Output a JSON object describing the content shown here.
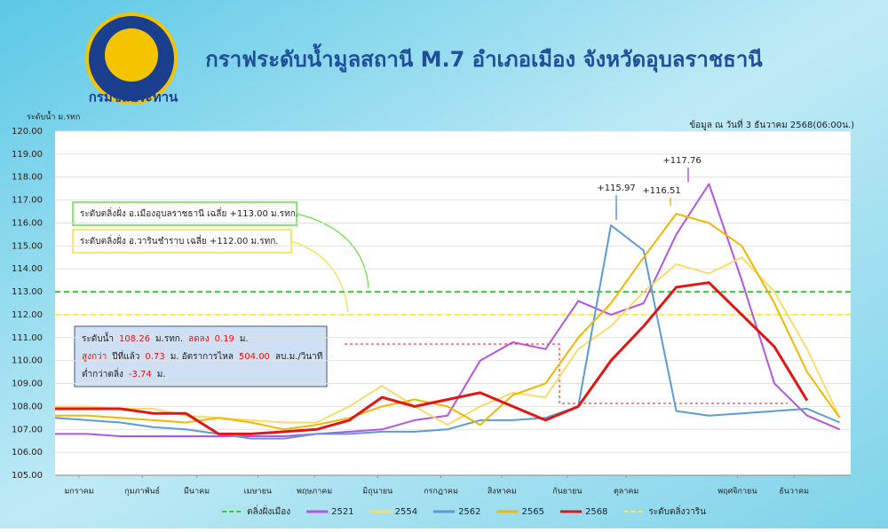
{
  "agency": "กรมชลประทาน",
  "chart_data": {
    "type": "line",
    "title": "กราฟระดับน้ำมูลสถานี M.7 อำเภอเมือง จังหวัดอุบลราชธานี",
    "y_label": "ระดับน้ำ ม.รทก",
    "data_note": "ข้อมูล ณ วันที่  3 ธันวาคม 2568(06:00น.)",
    "ylim": [
      105,
      120
    ],
    "yticks": [
      {
        "value": 105,
        "label": "105.00"
      },
      {
        "value": 106,
        "label": "106.00"
      },
      {
        "value": 107,
        "label": "107.00"
      },
      {
        "value": 108,
        "label": "108.00"
      },
      {
        "value": 109,
        "label": "109.00"
      },
      {
        "value": 110,
        "label": "110.00"
      },
      {
        "value": 111,
        "label": "111.00"
      },
      {
        "value": 112,
        "label": "112.00"
      },
      {
        "value": 113,
        "label": "113.00"
      },
      {
        "value": 114,
        "label": "114.00"
      },
      {
        "value": 115,
        "label": "115.00"
      },
      {
        "value": 116,
        "label": "116.00"
      },
      {
        "value": 117,
        "label": "117.00"
      },
      {
        "value": 118,
        "label": "118.00"
      },
      {
        "value": 119,
        "label": "119.00"
      },
      {
        "value": 120,
        "label": "120.00"
      }
    ],
    "xlim": [
      0,
      365
    ],
    "xticks": [
      {
        "value": 11,
        "label": "มกราคม"
      },
      {
        "value": 40,
        "label": "กุมภาพันธ์"
      },
      {
        "value": 65,
        "label": "มีนาคม"
      },
      {
        "value": 93,
        "label": "เมษายน"
      },
      {
        "value": 119,
        "label": "พฤษภาคม"
      },
      {
        "value": 148,
        "label": "มิถุนายน"
      },
      {
        "value": 177,
        "label": "กรกฎาคม"
      },
      {
        "value": 205,
        "label": "สิงหาคม"
      },
      {
        "value": 235,
        "label": "กันยายน"
      },
      {
        "value": 262,
        "label": "ตุลาคม"
      },
      {
        "value": 313,
        "label": "พฤศจิกายน"
      },
      {
        "value": 339,
        "label": "ธันวาคม"
      }
    ],
    "grid": true,
    "x": [
      0,
      15,
      30,
      45,
      60,
      75,
      90,
      105,
      120,
      135,
      150,
      165,
      180,
      195,
      210,
      225,
      240,
      255,
      270,
      285,
      300,
      315,
      330,
      345,
      360
    ],
    "reference_lines": [
      {
        "name": "ตลิ่งฝั่งเมือง",
        "value": 113,
        "color": "#33cc33"
      },
      {
        "name": "ระดับตลิ่งวาริน",
        "value": 112,
        "color": "#ffee33"
      }
    ],
    "series": [
      {
        "name": "2521",
        "color": "#b455e0",
        "values": [
          106.8,
          106.8,
          106.7,
          106.7,
          106.7,
          106.7,
          106.7,
          106.7,
          106.8,
          106.9,
          107.0,
          107.4,
          107.6,
          110.0,
          110.8,
          110.5,
          112.6,
          112.0,
          112.5,
          115.5,
          117.7,
          113.5,
          109.0,
          107.6,
          107.0
        ]
      },
      {
        "name": "2554",
        "color": "#f6dc6a",
        "values": [
          108.0,
          108.0,
          107.9,
          107.9,
          107.6,
          107.5,
          107.4,
          107.3,
          107.3,
          108.0,
          108.9,
          108.0,
          107.2,
          108.0,
          108.6,
          108.4,
          110.5,
          111.5,
          113.0,
          114.2,
          113.8,
          114.5,
          113.0,
          110.5,
          107.5
        ]
      },
      {
        "name": "2562",
        "color": "#5b9bd5",
        "values": [
          107.5,
          107.4,
          107.3,
          107.1,
          107.0,
          106.8,
          106.6,
          106.6,
          106.8,
          106.8,
          106.9,
          106.9,
          107.0,
          107.4,
          107.4,
          107.5,
          108.0,
          115.9,
          114.8,
          107.8,
          107.6,
          107.7,
          107.8,
          107.9,
          107.3
        ]
      },
      {
        "name": "2565",
        "color": "#f2b705",
        "values": [
          107.6,
          107.6,
          107.5,
          107.4,
          107.3,
          107.5,
          107.3,
          107.0,
          107.2,
          107.5,
          108.0,
          108.3,
          108.0,
          107.2,
          108.5,
          109.0,
          111.0,
          112.5,
          114.5,
          116.4,
          116.0,
          115.0,
          112.5,
          109.5,
          107.5
        ]
      },
      {
        "name": "2568",
        "color": "#e31414",
        "values": [
          107.9,
          107.9,
          107.9,
          107.7,
          107.7,
          106.8,
          106.8,
          106.9,
          107.0,
          107.4,
          108.4,
          108.0,
          108.3,
          108.6,
          108.0,
          107.4,
          108.0,
          110.0,
          111.5,
          113.2,
          113.4,
          112.0,
          110.6,
          108.26,
          null
        ]
      }
    ],
    "peak_labels": [
      "+115.97",
      "+116.51",
      "+117.76"
    ],
    "legend_notes": [
      "ระดับตลิ่งฝั่ง อ.เมืองอุบลราชธานี เฉลี่ย +113.00 ม.รทก.",
      "ระดับตลิ่งฝั่ง อ.วารินชำราบ  เฉลี่ย +112.00 ม.รทก."
    ],
    "info_box": [
      [
        "ระดับน้ำ",
        "108.26",
        "ม.รทก.",
        "ลดลง",
        "0.19",
        "ม."
      ],
      [
        "สูงกว่า",
        "ปีที่แล้ว",
        "0.73",
        "ม. อัตราการไหล",
        "504.00",
        "ลบ.ม./วินาที"
      ],
      [
        "ต่ำกว่าตลิ่ง",
        "-3.74",
        "ม."
      ]
    ]
  }
}
